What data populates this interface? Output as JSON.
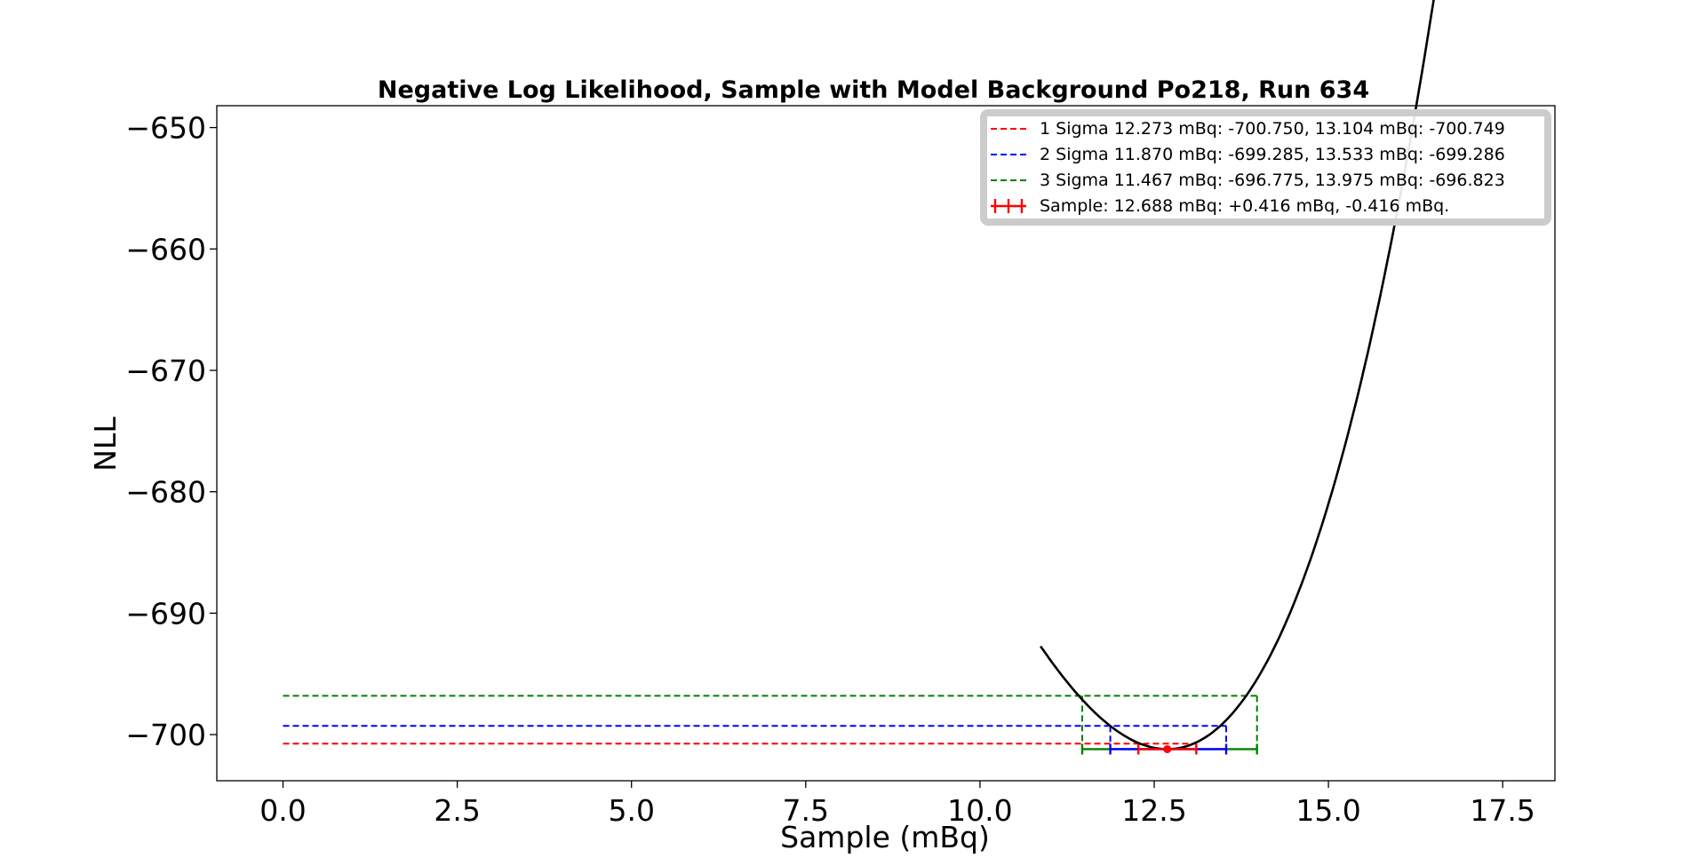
{
  "chart_data": {
    "type": "line",
    "title": "Negative Log Likelihood, Sample with Model Background Po218, Run 634",
    "xlabel": "Sample (mBq)",
    "ylabel": "NLL",
    "xlim": [
      -0.95,
      18.25
    ],
    "ylim": [
      -703.8,
      -648.2
    ],
    "xticks": [
      0.0,
      2.5,
      5.0,
      7.5,
      10.0,
      12.5,
      15.0,
      17.5
    ],
    "xtick_labels": [
      "0.0",
      "2.5",
      "5.0",
      "7.5",
      "10.0",
      "12.5",
      "15.0",
      "17.5"
    ],
    "yticks": [
      -650,
      -660,
      -670,
      -680,
      -690,
      -700
    ],
    "ytick_labels": [
      "−650",
      "−660",
      "−670",
      "−680",
      "−690",
      "−700"
    ],
    "grid": false,
    "legend_position": "top-right",
    "nll_curve": {
      "color": "#000000",
      "x_range": [
        10.87,
        17.45
      ],
      "minimum": {
        "x": 12.688,
        "y": -701.2
      },
      "curvature": 3.1,
      "asymmetry": 0.095
    },
    "sigma_levels": [
      {
        "legend": "1 Sigma    12.273 mBq: -700.750, 13.104 mBq: -700.749",
        "color": "#ff0000",
        "low": 12.273,
        "high": 13.104,
        "nll": -700.75
      },
      {
        "legend": "2 Sigma    11.870 mBq: -699.285, 13.533 mBq: -699.286",
        "color": "#0000ff",
        "low": 11.87,
        "high": 13.533,
        "nll": -699.285
      },
      {
        "legend": "3 Sigma    11.467 mBq: -696.775, 13.975 mBq: -696.823",
        "color": "#008000",
        "low": 11.467,
        "high": 13.975,
        "nll": -696.8
      }
    ],
    "sample_point": {
      "legend": "Sample: 12.688 mBq: +0.416 mBq, -0.416 mBq.",
      "x": 12.688,
      "plus": 0.416,
      "minus": 0.416,
      "y": -701.2,
      "color": "#ff0000"
    }
  }
}
